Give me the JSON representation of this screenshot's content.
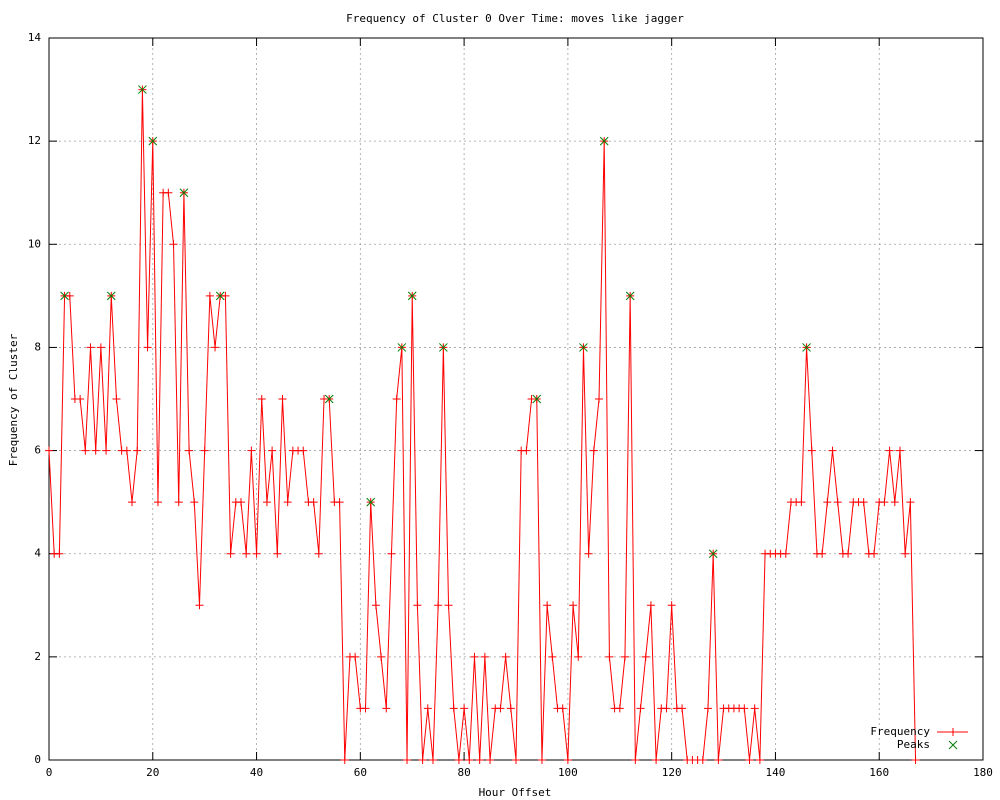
{
  "chart_data": {
    "type": "linespoints",
    "title": "Frequency of Cluster 0 Over Time: moves like jagger",
    "xlabel": "Hour Offset",
    "ylabel": "Frequency of Cluster",
    "xlim": [
      0,
      180
    ],
    "xticks": [
      0,
      20,
      40,
      60,
      80,
      100,
      120,
      140,
      160,
      180
    ],
    "ylim": [
      0,
      14
    ],
    "yticks": [
      0,
      2,
      4,
      6,
      8,
      10,
      12,
      14
    ],
    "grid": true,
    "legend": "bottom-right",
    "series": [
      {
        "name": "Frequency",
        "color": "#ff0000",
        "marker": "+",
        "x": [
          0,
          1,
          2,
          3,
          4,
          5,
          6,
          7,
          8,
          9,
          10,
          11,
          12,
          13,
          14,
          15,
          16,
          17,
          18,
          19,
          20,
          21,
          22,
          23,
          24,
          25,
          26,
          27,
          28,
          29,
          30,
          31,
          32,
          33,
          34,
          35,
          36,
          37,
          38,
          39,
          40,
          41,
          42,
          43,
          44,
          45,
          46,
          47,
          48,
          49,
          50,
          51,
          52,
          53,
          54,
          55,
          56,
          57,
          58,
          59,
          60,
          61,
          62,
          63,
          64,
          65,
          66,
          67,
          68,
          69,
          70,
          71,
          72,
          73,
          74,
          75,
          76,
          77,
          78,
          79,
          80,
          81,
          82,
          83,
          84,
          85,
          86,
          87,
          88,
          89,
          90,
          91,
          92,
          93,
          94,
          95,
          96,
          97,
          98,
          99,
          100,
          101,
          102,
          103,
          104,
          105,
          106,
          107,
          108,
          109,
          110,
          111,
          112,
          113,
          114,
          115,
          116,
          117,
          118,
          119,
          120,
          121,
          122,
          123,
          124,
          125,
          126,
          127,
          128,
          129,
          130,
          131,
          132,
          133,
          134,
          135,
          136,
          137,
          138,
          139,
          140,
          141,
          142,
          143,
          144,
          145,
          146,
          147,
          148,
          149,
          150,
          151,
          152,
          153,
          154,
          155,
          156,
          157,
          158,
          159,
          160,
          161,
          162,
          163,
          164,
          165,
          166,
          167
        ],
        "values": [
          6,
          4,
          4,
          9,
          9,
          7,
          7,
          6,
          8,
          6,
          8,
          6,
          9,
          7,
          6,
          6,
          5,
          6,
          13,
          8,
          12,
          5,
          11,
          11,
          10,
          5,
          11,
          6,
          5,
          3,
          6,
          9,
          8,
          9,
          9,
          4,
          5,
          5,
          4,
          6,
          4,
          7,
          5,
          6,
          4,
          7,
          5,
          6,
          6,
          6,
          5,
          5,
          4,
          7,
          7,
          5,
          5,
          0,
          2,
          2,
          1,
          1,
          5,
          3,
          2,
          1,
          4,
          7,
          8,
          0,
          9,
          3,
          0,
          1,
          0,
          3,
          8,
          3,
          1,
          0,
          1,
          0,
          2,
          0,
          2,
          0,
          1,
          1,
          2,
          1,
          0,
          6,
          6,
          7,
          7,
          0,
          3,
          2,
          1,
          1,
          0,
          3,
          2,
          8,
          4,
          6,
          7,
          12,
          2,
          1,
          1,
          2,
          9,
          0,
          1,
          2,
          3,
          0,
          1,
          1,
          3,
          1,
          1,
          0,
          0,
          0,
          0,
          1,
          4,
          0,
          1,
          1,
          1,
          1,
          1,
          0,
          1,
          0,
          4,
          4,
          4,
          4,
          4,
          5,
          5,
          5,
          8,
          6,
          4,
          4,
          5,
          6,
          5,
          4,
          4,
          5,
          5,
          5,
          4,
          4,
          5,
          5,
          6,
          5,
          6,
          4,
          5,
          0
        ]
      },
      {
        "name": "Peaks",
        "color": "#008000",
        "marker": "x",
        "x": [
          3,
          12,
          18,
          20,
          26,
          33,
          54,
          62,
          68,
          70,
          76,
          94,
          103,
          107,
          112,
          128,
          146
        ],
        "values": [
          9,
          9,
          13,
          12,
          11,
          9,
          7,
          5,
          8,
          9,
          8,
          7,
          8,
          12,
          9,
          4,
          8
        ]
      }
    ]
  }
}
